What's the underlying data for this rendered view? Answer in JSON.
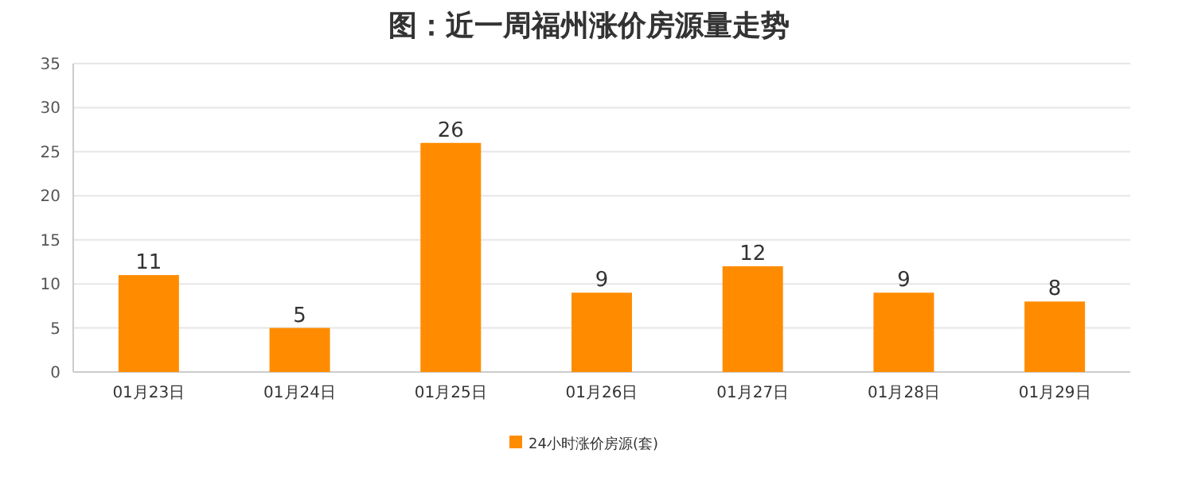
{
  "chart_data": {
    "type": "bar",
    "title": "图：近一周福州涨价房源量走势",
    "categories": [
      "01月23日",
      "01月24日",
      "01月25日",
      "01月26日",
      "01月27日",
      "01月28日",
      "01月29日"
    ],
    "series": [
      {
        "name": "24小时涨价房源(套)",
        "color": "#ff8c00",
        "values": [
          11,
          5,
          26,
          9,
          12,
          9,
          8
        ]
      }
    ],
    "ylim": [
      0,
      35
    ],
    "yticks": [
      0,
      5,
      10,
      15,
      20,
      25,
      30,
      35
    ],
    "grid": "y",
    "legend": "bottom",
    "data_labels": true
  }
}
